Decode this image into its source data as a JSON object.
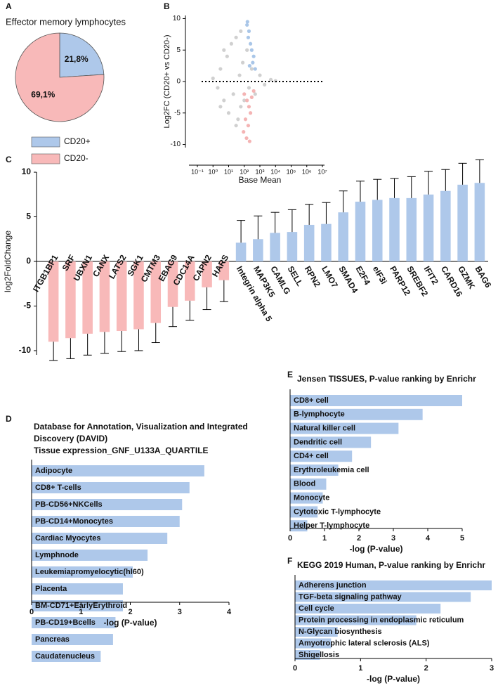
{
  "chart_data": [
    {
      "type": "pie",
      "panel": "A",
      "title": "Effector memory lymphocytes",
      "categories": [
        "CD20+",
        "CD20-"
      ],
      "values": [
        21.8,
        69.1
      ],
      "value_labels": [
        "21,8%",
        "69,1%"
      ],
      "colors": [
        "#aec8ea",
        "#f8b9b9"
      ],
      "legend": "bottom"
    },
    {
      "type": "scatter",
      "panel": "B",
      "xlabel": "Base Mean",
      "ylabel": "Log2FC (CD20+ vs CD20-)",
      "xscale": "log",
      "xlim": [
        0.1,
        10000000
      ],
      "xticks": [
        {
          "value": 0.1,
          "label": "10⁻¹"
        },
        {
          "value": 1,
          "label": "10⁰"
        },
        {
          "value": 10,
          "label": "10¹"
        },
        {
          "value": 100,
          "label": "10²"
        },
        {
          "value": 1000,
          "label": "10³"
        },
        {
          "value": 10000,
          "label": "10⁴"
        },
        {
          "value": 100000,
          "label": "10⁵"
        },
        {
          "value": 1000000,
          "label": "10⁶"
        },
        {
          "value": 10000000,
          "label": "10⁷"
        }
      ],
      "ylim": [
        -10.5,
        10.5
      ],
      "yticks": [
        -10,
        -5,
        0,
        5,
        10
      ],
      "series": [
        {
          "color": "#d0d0d0",
          "x": [
            1,
            2,
            3,
            5,
            8,
            10,
            15,
            20,
            30,
            40,
            50,
            60,
            80,
            100,
            150,
            200,
            300,
            500,
            1000,
            2000,
            5000,
            10000,
            30,
            60,
            5,
            3
          ],
          "values": [
            0.5,
            -1,
            2,
            -3,
            4,
            -5,
            6,
            -2,
            7,
            -6,
            1,
            -4,
            3,
            -3,
            5,
            -1,
            2,
            -2,
            1,
            -0.5,
            0.3,
            0.1,
            -7,
            8,
            5,
            -4
          ]
        },
        {
          "color": "#a9c6e8",
          "x": [
            150,
            200,
            250,
            300,
            400,
            180,
            350,
            220,
            500,
            160
          ],
          "values": [
            9,
            8,
            6,
            5,
            4,
            7,
            3,
            2.5,
            2,
            9.5
          ]
        },
        {
          "color": "#f4b4b4",
          "x": [
            100,
            150,
            200,
            250,
            300,
            120,
            180,
            90,
            140,
            400,
            220
          ],
          "values": [
            -2,
            -3,
            -4,
            -5,
            -2.5,
            -6,
            -7,
            -8,
            -9,
            -1.5,
            -9.5
          ]
        }
      ]
    },
    {
      "type": "bar",
      "panel": "C",
      "ylabel": "log2FoldChange",
      "categories": [
        "ITGB1BP1",
        "SRF",
        "UBXN1",
        "CANX",
        "LATS2",
        "SGK1",
        "CMTM3",
        "EBAG9",
        "CDC14A",
        "CAPN2",
        "HARS",
        "Integrin alpha 5",
        "MAP3K5",
        "CAMLG",
        "SELL",
        "RPN2",
        "LMO7",
        "SMAD4",
        "E2F4",
        "eIF3i",
        "PARP12",
        "SREBF2",
        "IFIT2",
        "CARD16",
        "GZMK",
        "BAG6"
      ],
      "values": [
        -9.0,
        -8.6,
        -8.1,
        -7.9,
        -7.8,
        -7.6,
        -6.9,
        -5.1,
        -4.4,
        -2.9,
        -2.1,
        2.1,
        2.5,
        3.2,
        3.3,
        4.1,
        4.2,
        5.5,
        6.7,
        6.9,
        7.1,
        7.1,
        7.5,
        7.9,
        8.6,
        8.8
      ],
      "errors": [
        2.1,
        2.3,
        2.4,
        2.4,
        2.3,
        2.4,
        2.2,
        2.2,
        2.2,
        2.5,
        2.4,
        2.5,
        2.6,
        2.3,
        2.5,
        2.3,
        2.4,
        2.4,
        2.3,
        2.3,
        2.2,
        2.4,
        2.6,
        2.4,
        2.4,
        2.6
      ],
      "colors": {
        "negative": "#f8b9b9",
        "positive": "#aec8ea"
      },
      "ylim": [
        -11.5,
        11.5
      ],
      "yticks": [
        -10,
        -5,
        0,
        5,
        10
      ]
    },
    {
      "type": "barh",
      "panel": "D",
      "title": [
        "Database for Annotation, Visualization and Integrated",
        "Discovery (DAVID)",
        "Tissue expression_GNF_U133A_QUARTILE"
      ],
      "xlabel": "-log (P-value)",
      "color": "#aec8ea",
      "categories": [
        "Adipocyte",
        "CD8+ T-cells",
        "PB-CD56+NKCells",
        "PB-CD14+Monocytes",
        "Cardiac Myocytes",
        "Lymphnode",
        "Leukemiapromyelocytic(hl60)",
        "Placenta",
        "BM-CD71+EarlyErythroid",
        "PB-CD19+Bcells",
        "Pancreas",
        "Caudatenucleus"
      ],
      "values": [
        3.5,
        3.2,
        3.05,
        3.0,
        2.75,
        2.35,
        2.05,
        1.85,
        1.85,
        1.7,
        1.65,
        1.4
      ],
      "xlim": [
        0,
        4
      ],
      "xticks": [
        0,
        1,
        2,
        3,
        4
      ]
    },
    {
      "type": "barh",
      "panel": "E",
      "title": [
        "Jensen TISSUES, P-value ranking by Enrichr"
      ],
      "xlabel": "-log (P-value)",
      "color": "#aec8ea",
      "categories": [
        "CD8+ cell",
        "B-lymphocyte",
        "Natural killer cell",
        "Dendritic cell",
        "CD4+ cell",
        "Erythroleukemia cell",
        "Blood",
        "Monocyte",
        "Cytotoxic T-lymphocyte",
        "Helper T-lymphocyte"
      ],
      "values": [
        5.0,
        3.85,
        3.15,
        2.35,
        1.8,
        1.4,
        1.05,
        0.95,
        0.8,
        0.5
      ],
      "xlim": [
        0,
        5
      ],
      "xticks": [
        0,
        1,
        2,
        3,
        4,
        5
      ]
    },
    {
      "type": "barh",
      "panel": "F",
      "title": [
        "KEGG 2019 Human, P-value ranking by Enrichr"
      ],
      "xlabel": "-log (P-value)",
      "color": "#aec8ea",
      "categories": [
        "Adherens junction",
        "TGF-beta signaling pathway",
        "Cell cycle",
        "Protein processing in endoplasmic reticulum",
        "N-Glycan biosynthesis",
        "Amyotrophic lateral sclerosis (ALS)",
        "Shigellosis"
      ],
      "values": [
        3.0,
        2.68,
        2.22,
        1.85,
        0.65,
        0.55,
        0.38
      ],
      "xlim": [
        0,
        3
      ],
      "xticks": [
        0,
        1,
        2,
        3
      ]
    }
  ]
}
